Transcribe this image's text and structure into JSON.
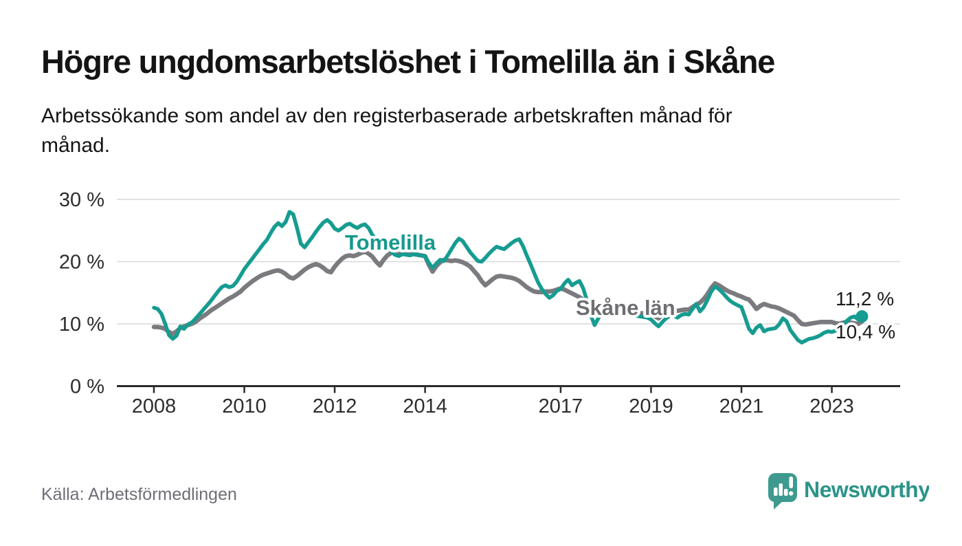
{
  "chart_data": {
    "type": "line",
    "title": "Högre ungdomsarbetslöshet i Tomelilla än i Skåne",
    "subtitle_lines": [
      "Arbetssökande som andel av den registerbaserade arbetskraften månad för",
      "månad."
    ],
    "source": "Källa: Arbetsförmedlingen",
    "ylim": [
      0,
      30
    ],
    "grid": "horizontal",
    "x_start": "2008-01",
    "x_end": "2023-09",
    "frequency": "monthly",
    "y_ticks": [
      {
        "value": 0,
        "label": "0 %"
      },
      {
        "value": 10,
        "label": "10 %"
      },
      {
        "value": 20,
        "label": "20 %"
      },
      {
        "value": 30,
        "label": "30 %"
      }
    ],
    "x_ticks": [
      {
        "year": 2008,
        "label": "2008"
      },
      {
        "year": 2010,
        "label": "2010"
      },
      {
        "year": 2012,
        "label": "2012"
      },
      {
        "year": 2014,
        "label": "2014"
      },
      {
        "year": 2017,
        "label": "2017"
      },
      {
        "year": 2019,
        "label": "2019"
      },
      {
        "year": 2021,
        "label": "2021"
      },
      {
        "year": 2023,
        "label": "2023"
      }
    ],
    "series": [
      {
        "name": "Tomelilla",
        "label": "Tomelilla",
        "color": "#169C91",
        "end_label": "11,2 %",
        "end_value": 11.2,
        "values": [
          12.6,
          12.4,
          11.6,
          10.0,
          8.2,
          7.6,
          8.1,
          9.6,
          9.2,
          9.9,
          10.2,
          10.8,
          11.5,
          12.2,
          12.9,
          13.6,
          14.4,
          15.2,
          15.9,
          16.2,
          15.9,
          16.1,
          16.8,
          17.8,
          18.8,
          19.6,
          20.4,
          21.2,
          22.0,
          22.8,
          23.5,
          24.6,
          25.6,
          26.2,
          25.7,
          26.4,
          28.0,
          27.6,
          25.4,
          22.9,
          22.3,
          23.1,
          23.9,
          24.8,
          25.6,
          26.3,
          26.7,
          26.2,
          25.3,
          25.0,
          25.4,
          25.9,
          26.1,
          25.7,
          25.4,
          25.8,
          26.0,
          25.4,
          24.3,
          23.4,
          22.6,
          23.1,
          22.3,
          21.6,
          21.1,
          20.9,
          21.2,
          21.1,
          21.0,
          21.2,
          21.1,
          21.0,
          20.9,
          19.8,
          19.0,
          19.7,
          20.3,
          20.1,
          21.0,
          22.0,
          23.0,
          23.7,
          23.3,
          22.4,
          21.5,
          20.8,
          20.1,
          20.0,
          20.6,
          21.3,
          21.9,
          22.4,
          22.2,
          22.0,
          22.5,
          23.0,
          23.4,
          23.6,
          22.5,
          21.0,
          19.6,
          18.1,
          16.7,
          15.6,
          14.8,
          14.2,
          14.6,
          15.3,
          15.6,
          16.5,
          17.1,
          16.2,
          16.6,
          16.9,
          15.7,
          13.7,
          11.4,
          9.8,
          10.9,
          12.0,
          12.3,
          12.2,
          12.1,
          11.9,
          11.8,
          11.6,
          11.5,
          11.4,
          11.3,
          11.2,
          11.1,
          11.0,
          10.7,
          10.1,
          9.6,
          10.3,
          10.9,
          11.3,
          11.3,
          11.0,
          11.4,
          11.6,
          11.5,
          12.4,
          13.2,
          12.0,
          12.7,
          13.9,
          15.2,
          16.0,
          15.6,
          15.0,
          14.3,
          13.7,
          13.3,
          13.0,
          12.7,
          11.0,
          9.2,
          8.5,
          9.4,
          9.8,
          8.8,
          9.1,
          9.2,
          9.3,
          9.9,
          10.9,
          10.4,
          9.0,
          8.2,
          7.4,
          7.0,
          7.3,
          7.6,
          7.7,
          7.9,
          8.2,
          8.6,
          8.8,
          8.7,
          8.9,
          9.4,
          9.9,
          10.5,
          11.0,
          11.2,
          10.7,
          11.2
        ]
      },
      {
        "name": "Skåne län",
        "label": "Skåne län",
        "color": "#7B7B7F",
        "end_label": "10,4 %",
        "end_value": 10.4,
        "values": [
          9.5,
          9.5,
          9.4,
          9.2,
          8.7,
          8.4,
          8.8,
          9.3,
          9.6,
          9.8,
          10.0,
          10.3,
          10.8,
          11.2,
          11.6,
          12.1,
          12.5,
          12.9,
          13.3,
          13.7,
          14.1,
          14.4,
          14.8,
          15.2,
          15.8,
          16.3,
          16.8,
          17.2,
          17.6,
          17.9,
          18.1,
          18.3,
          18.5,
          18.6,
          18.4,
          18.0,
          17.5,
          17.3,
          17.7,
          18.2,
          18.7,
          19.1,
          19.4,
          19.6,
          19.4,
          19.0,
          18.5,
          18.3,
          19.2,
          19.9,
          20.5,
          20.9,
          21.0,
          20.9,
          21.1,
          21.4,
          21.6,
          21.3,
          20.8,
          20.0,
          19.4,
          20.3,
          21.0,
          21.4,
          21.4,
          21.2,
          21.3,
          21.4,
          21.3,
          21.2,
          21.1,
          21.0,
          20.9,
          19.5,
          18.4,
          19.3,
          19.9,
          20.3,
          20.2,
          20.1,
          20.2,
          20.1,
          19.9,
          19.6,
          19.2,
          18.5,
          17.8,
          16.9,
          16.2,
          16.7,
          17.2,
          17.6,
          17.7,
          17.6,
          17.5,
          17.4,
          17.2,
          16.9,
          16.4,
          15.9,
          15.5,
          15.2,
          15.1,
          15.1,
          15.2,
          15.2,
          15.3,
          15.5,
          15.7,
          15.5,
          15.2,
          14.9,
          14.6,
          14.3,
          13.9,
          13.6,
          13.3,
          13.0,
          12.8,
          12.7,
          12.6,
          12.5,
          12.4,
          12.3,
          12.1,
          12.0,
          11.9,
          11.8,
          11.8,
          11.7,
          11.7,
          11.7,
          11.6,
          11.2,
          10.9,
          11.5,
          12.0,
          12.2,
          12.2,
          12.1,
          12.2,
          12.3,
          12.3,
          12.7,
          13.1,
          13.4,
          14.0,
          14.8,
          15.8,
          16.5,
          16.2,
          15.8,
          15.4,
          15.1,
          14.9,
          14.6,
          14.4,
          14.1,
          13.9,
          13.2,
          12.4,
          12.9,
          13.2,
          13.0,
          12.8,
          12.7,
          12.5,
          12.2,
          11.9,
          11.6,
          11.3,
          10.6,
          10.0,
          9.9,
          10.0,
          10.1,
          10.2,
          10.3,
          10.3,
          10.3,
          10.3,
          10.1,
          10.0,
          10.2,
          10.3,
          10.2,
          10.1,
          10.0,
          10.4
        ]
      }
    ]
  },
  "branding": {
    "logo_text": "Newsworthy",
    "logo_color": "#2B9489",
    "logo_mark_color": "#3E9A8F"
  }
}
